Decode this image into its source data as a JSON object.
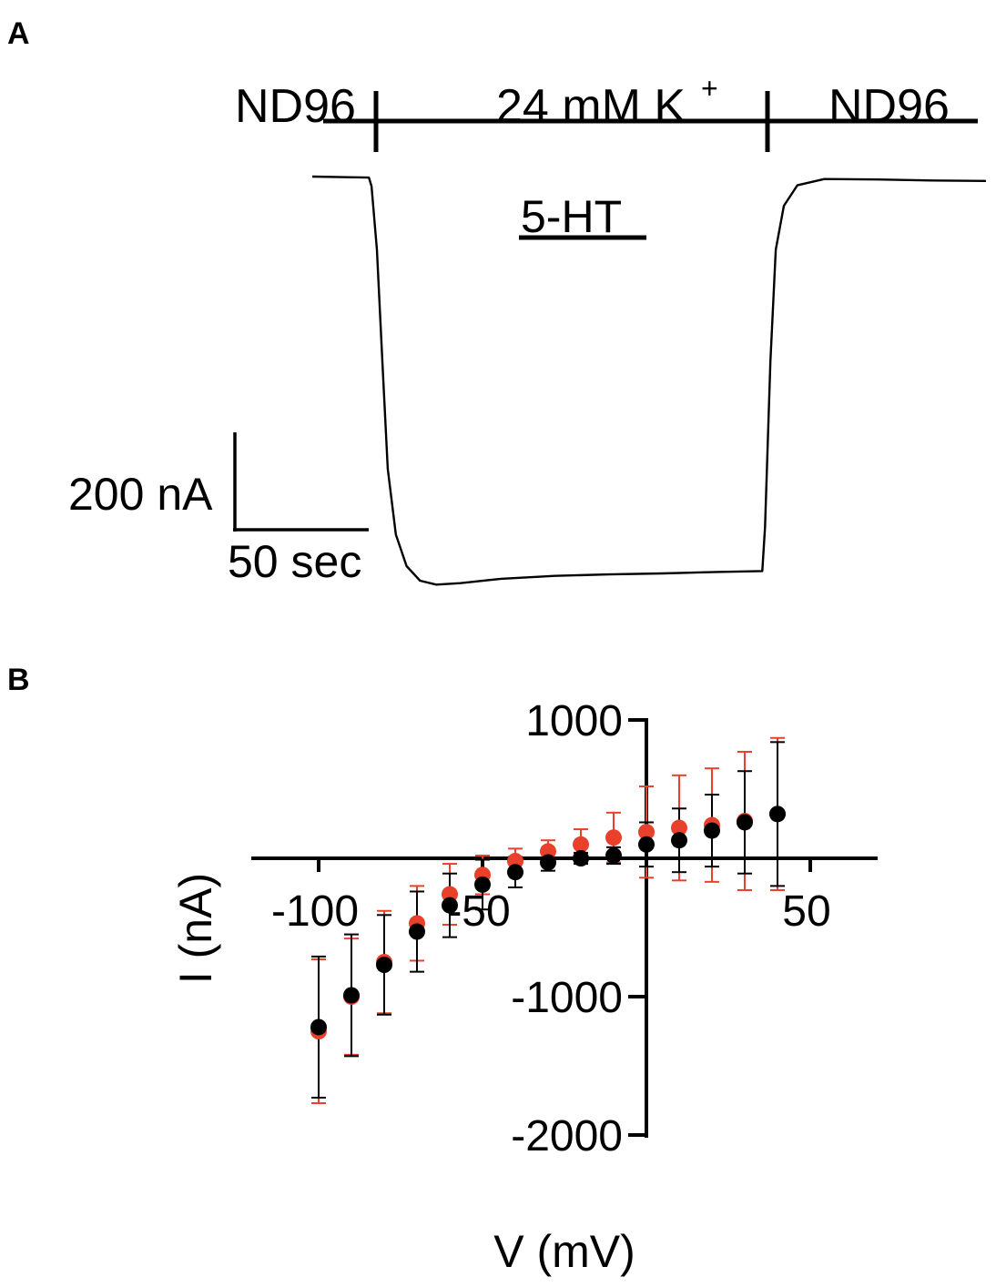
{
  "panel_a": {
    "label": "A",
    "solution_left": "ND96",
    "solution_middle": "24 mM K",
    "solution_middle_sup": "+",
    "solution_right": "ND96",
    "drug_label": "5-HT",
    "scale_y_label": "200 nA",
    "scale_x_label": "50 sec"
  },
  "panel_b": {
    "label": "B",
    "xlabel": "V (mV)",
    "ylabel": "I (nA)"
  },
  "chart_data": [
    {
      "type": "line",
      "panel": "A",
      "title": "",
      "xlabel": "",
      "ylabel": "",
      "x_units": "sec",
      "y_units": "nA",
      "scale_bars": {
        "x": 50,
        "y": 200
      },
      "annotations": [
        "ND96",
        "24 mM K+",
        "ND96",
        "5-HT"
      ],
      "series": [
        {
          "x": [
            0,
            21,
            22,
            24,
            26,
            28,
            31,
            35,
            40,
            46,
            55,
            70,
            90,
            110,
            130,
            150,
            167,
            168,
            170,
            172,
            175,
            180,
            190,
            210,
            230,
            250
          ],
          "y": [
            0,
            -2,
            -20,
            -150,
            -380,
            -600,
            -735,
            -800,
            -830,
            -838,
            -835,
            -826,
            -820,
            -817,
            -815,
            -812,
            -810,
            -720,
            -380,
            -150,
            -60,
            -18,
            -5,
            -6,
            -8,
            -9
          ],
          "color": "#000000"
        }
      ]
    },
    {
      "type": "scatter",
      "panel": "B",
      "title": "",
      "xlabel": "V (mV)",
      "ylabel": "I (nA)",
      "xlim": [
        -120,
        70
      ],
      "ylim": [
        -2000,
        1000
      ],
      "xticks": [
        -100,
        -50,
        50
      ],
      "yticks": [
        1000,
        -1000,
        -2000
      ],
      "error_bars": true,
      "x": [
        -100,
        -90,
        -80,
        -70,
        -60,
        -50,
        -40,
        -30,
        -20,
        -10,
        0,
        10,
        20,
        30,
        40
      ],
      "series": [
        {
          "color": "#e8402a",
          "values": [
            -1250,
            -1000,
            -750,
            -470,
            -260,
            -120,
            -20,
            50,
            100,
            150,
            190,
            220,
            240,
            270,
            320
          ],
          "errors": [
            520,
            420,
            370,
            270,
            220,
            140,
            90,
            80,
            110,
            180,
            330,
            380,
            410,
            500,
            550
          ]
        },
        {
          "color": "#000000",
          "values": [
            -1220,
            -990,
            -770,
            -530,
            -340,
            -190,
            -100,
            -30,
            0,
            20,
            100,
            130,
            200,
            260,
            320
          ],
          "errors": [
            510,
            440,
            360,
            290,
            230,
            180,
            110,
            60,
            40,
            60,
            160,
            230,
            260,
            370,
            520
          ]
        }
      ]
    }
  ]
}
